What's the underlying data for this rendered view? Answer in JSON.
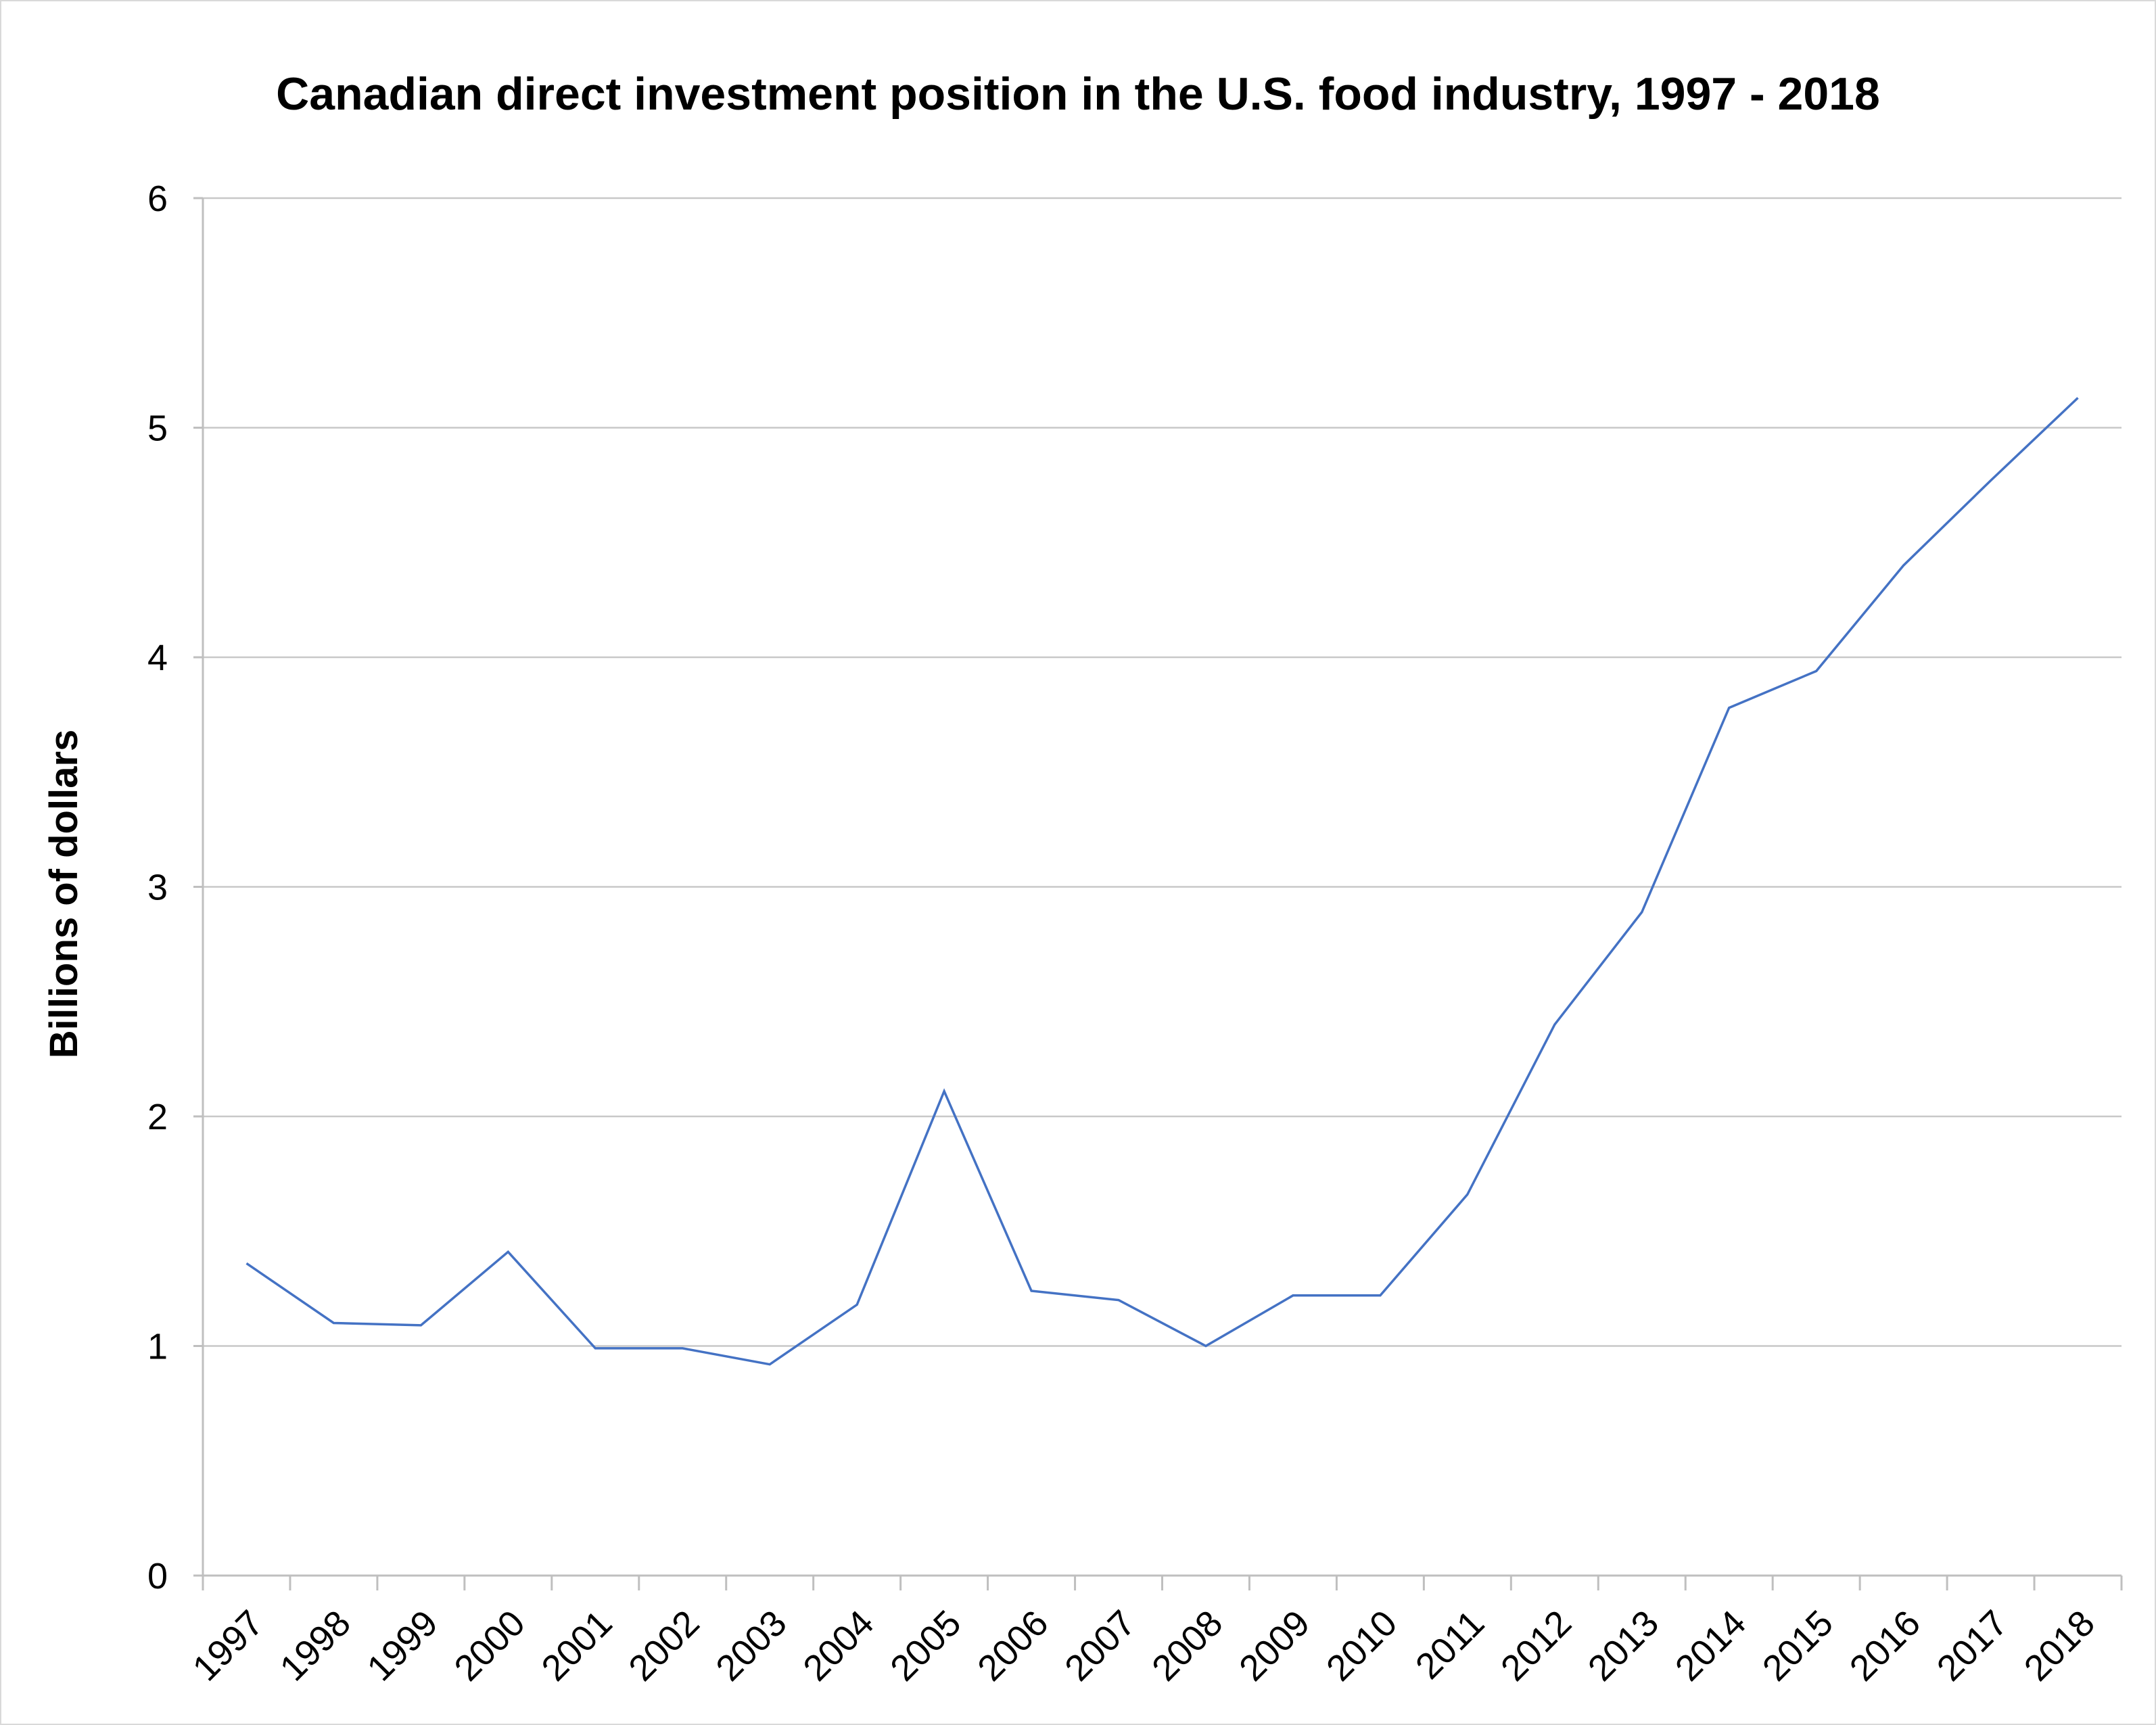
{
  "chart_data": {
    "type": "line",
    "title": "Canadian direct investment position in the U.S. food industry, 1997 - 2018",
    "xlabel": "",
    "ylabel": "Billions of dollars",
    "categories": [
      "1997",
      "1998",
      "1999",
      "2000",
      "2001",
      "2002",
      "2003",
      "2004",
      "2005",
      "2006",
      "2007",
      "2008",
      "2009",
      "2010",
      "2011",
      "2012",
      "2013",
      "2014",
      "2015",
      "2016",
      "2017",
      "2018"
    ],
    "series": [
      {
        "name": "",
        "color": "#4472c4",
        "values": [
          1.36,
          1.1,
          1.09,
          1.41,
          0.99,
          0.99,
          0.92,
          1.18,
          2.11,
          1.24,
          1.2,
          1.0,
          1.22,
          1.22,
          1.66,
          2.4,
          2.89,
          3.78,
          3.94,
          4.4,
          4.77,
          5.13
        ]
      }
    ],
    "ylim": [
      0,
      6
    ],
    "yticks": [
      "0",
      "1",
      "2",
      "3",
      "4",
      "5",
      "6"
    ],
    "grid": true,
    "legend": "none"
  }
}
